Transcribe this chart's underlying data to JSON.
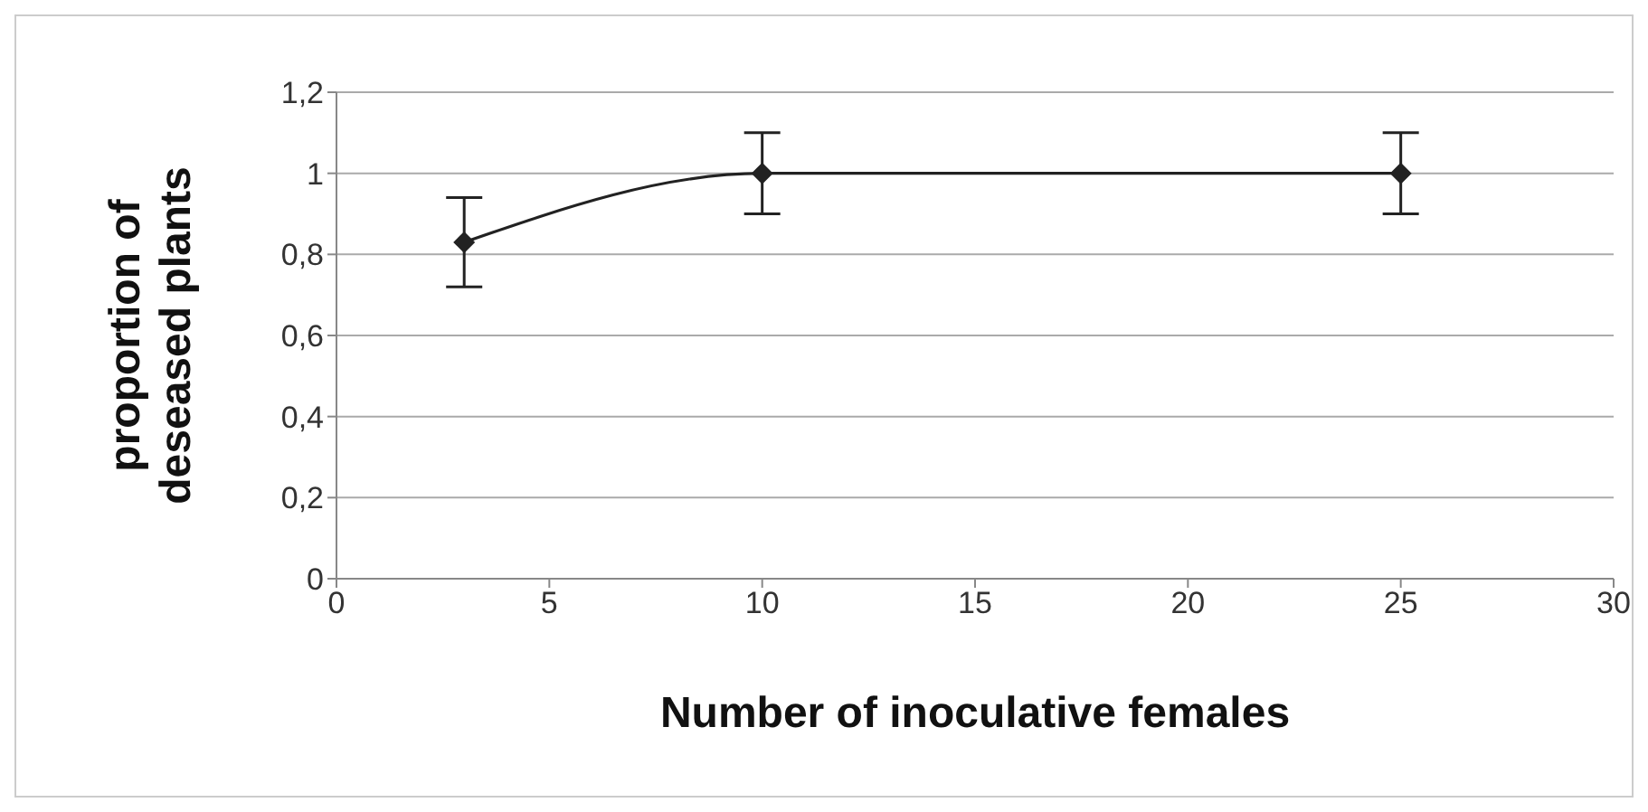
{
  "chart_data": {
    "type": "line",
    "xlabel": "Number of inoculative females",
    "ylabel": "proportion of deseased plants",
    "x": [
      3,
      10,
      25
    ],
    "series": [
      {
        "color": "#222222",
        "values": [
          0.83,
          1.0,
          1.0
        ],
        "errors": [
          0.11,
          0.1,
          0.1
        ]
      }
    ],
    "xlim": [
      0,
      30
    ],
    "xticks": [
      0,
      5,
      10,
      15,
      20,
      25,
      30
    ],
    "ylim": [
      0,
      1.2
    ],
    "yticks": [
      0,
      {
        "value": 0.2,
        "label": "0,2"
      },
      {
        "value": 0.4,
        "label": "0,4"
      },
      {
        "value": 0.6,
        "label": "0,6"
      },
      {
        "value": 0.8,
        "label": "0,8"
      },
      1,
      {
        "value": 1.2,
        "label": "1,2"
      }
    ],
    "grid": "y",
    "marker": "diamond",
    "line_style": "solid",
    "legend": false
  }
}
